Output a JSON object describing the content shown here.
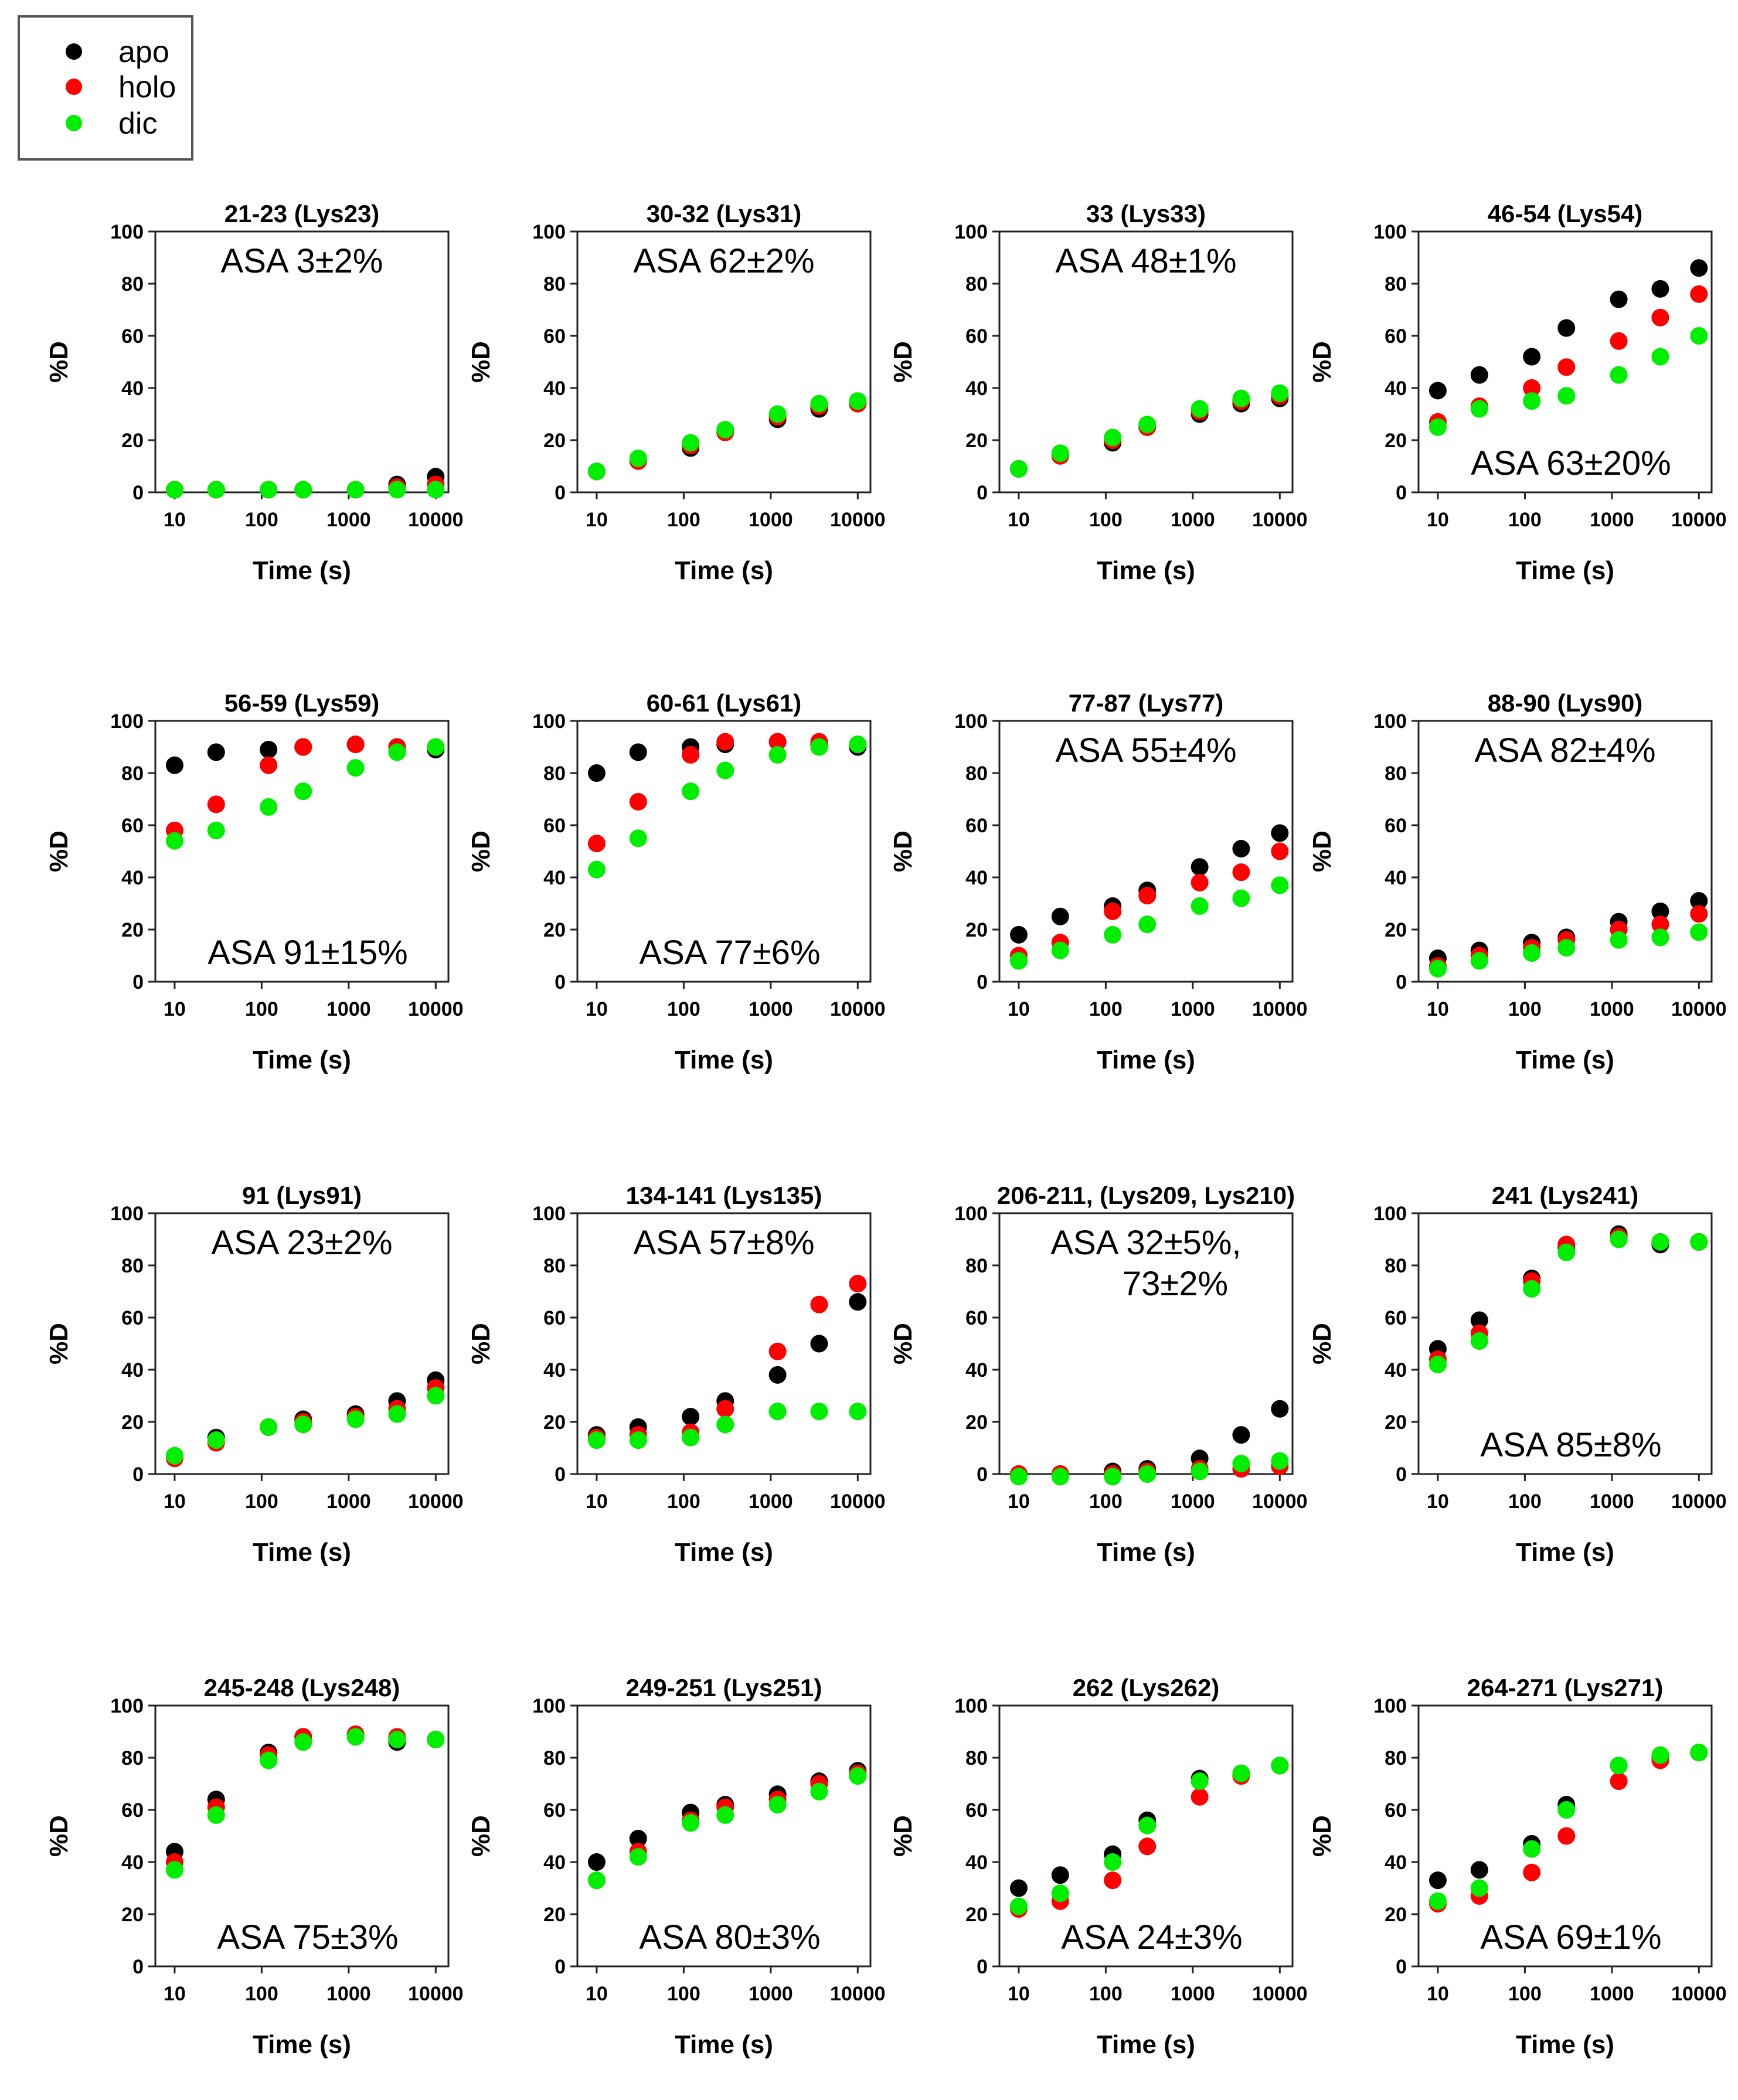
{
  "legend": [
    {
      "label": "apo",
      "color": "#000000"
    },
    {
      "label": "holo",
      "color": "#ff0000"
    },
    {
      "label": "dic",
      "color": "#00ee00"
    }
  ],
  "chart_data": [
    {
      "type": "scatter",
      "title": "21-23 (Lys23)",
      "xlabel": "Time (s)",
      "ylabel": "%D",
      "xscale": "log",
      "xticks": [
        10,
        100,
        1000,
        10000
      ],
      "yticks": [
        0,
        20,
        40,
        60,
        80,
        100
      ],
      "ylim": [
        0,
        100
      ],
      "annotation": [
        "ASA 3±2%"
      ],
      "annotation_position": "top",
      "x": [
        10,
        30,
        120,
        300,
        1200,
        3600,
        10000
      ],
      "series": [
        {
          "name": "apo",
          "values": [
            1,
            1,
            1,
            1,
            1,
            3,
            6
          ]
        },
        {
          "name": "holo",
          "values": [
            1,
            1,
            1,
            1,
            1,
            2,
            3
          ]
        },
        {
          "name": "dic",
          "values": [
            1,
            1,
            1,
            1,
            1,
            1,
            1
          ]
        }
      ]
    },
    {
      "type": "scatter",
      "title": "30-32 (Lys31)",
      "xlabel": "Time (s)",
      "ylabel": "%D",
      "xscale": "log",
      "xticks": [
        10,
        100,
        1000,
        10000
      ],
      "yticks": [
        0,
        20,
        40,
        60,
        80,
        100
      ],
      "ylim": [
        0,
        100
      ],
      "annotation": [
        "ASA 62±2%"
      ],
      "annotation_position": "top",
      "x": [
        10,
        30,
        120,
        300,
        1200,
        3600,
        10000
      ],
      "series": [
        {
          "name": "apo",
          "values": [
            8,
            12,
            17,
            23,
            28,
            32,
            34
          ]
        },
        {
          "name": "holo",
          "values": [
            8,
            12,
            18,
            23,
            29,
            33,
            34
          ]
        },
        {
          "name": "dic",
          "values": [
            8,
            13,
            19,
            24,
            30,
            34,
            35
          ]
        }
      ]
    },
    {
      "type": "scatter",
      "title": "33 (Lys33)",
      "xlabel": "Time (s)",
      "ylabel": "%D",
      "xscale": "log",
      "xticks": [
        10,
        100,
        1000,
        10000
      ],
      "yticks": [
        0,
        20,
        40,
        60,
        80,
        100
      ],
      "ylim": [
        0,
        100
      ],
      "annotation": [
        "ASA 48±1%"
      ],
      "annotation_position": "top",
      "x": [
        10,
        30,
        120,
        300,
        1200,
        3600,
        10000
      ],
      "series": [
        {
          "name": "apo",
          "values": [
            9,
            14,
            19,
            25,
            30,
            34,
            36
          ]
        },
        {
          "name": "holo",
          "values": [
            9,
            14,
            20,
            25,
            31,
            35,
            37
          ]
        },
        {
          "name": "dic",
          "values": [
            9,
            15,
            21,
            26,
            32,
            36,
            38
          ]
        }
      ]
    },
    {
      "type": "scatter",
      "title": "46-54 (Lys54)",
      "xlabel": "Time (s)",
      "ylabel": "%D",
      "xscale": "log",
      "xticks": [
        10,
        100,
        1000,
        10000
      ],
      "yticks": [
        0,
        20,
        40,
        60,
        80,
        100
      ],
      "ylim": [
        0,
        100
      ],
      "annotation": [
        "ASA 63±20%"
      ],
      "annotation_position": "bottom",
      "x": [
        10,
        30,
        120,
        300,
        1200,
        3600,
        10000
      ],
      "series": [
        {
          "name": "apo",
          "values": [
            39,
            45,
            52,
            63,
            74,
            78,
            86
          ]
        },
        {
          "name": "holo",
          "values": [
            27,
            33,
            40,
            48,
            58,
            67,
            76
          ]
        },
        {
          "name": "dic",
          "values": [
            25,
            32,
            35,
            37,
            45,
            52,
            60
          ]
        }
      ]
    },
    {
      "type": "scatter",
      "title": "56-59 (Lys59)",
      "xlabel": "Time (s)",
      "ylabel": "%D",
      "xscale": "log",
      "xticks": [
        10,
        100,
        1000,
        10000
      ],
      "yticks": [
        0,
        20,
        40,
        60,
        80,
        100
      ],
      "ylim": [
        0,
        100
      ],
      "annotation": [
        "ASA 91±15%"
      ],
      "annotation_position": "bottom",
      "x": [
        10,
        30,
        120,
        300,
        1200,
        3600,
        10000
      ],
      "series": [
        {
          "name": "apo",
          "values": [
            83,
            88,
            89,
            90,
            91,
            90,
            89
          ]
        },
        {
          "name": "holo",
          "values": [
            58,
            68,
            83,
            90,
            91,
            90,
            90
          ]
        },
        {
          "name": "dic",
          "values": [
            54,
            58,
            67,
            73,
            82,
            88,
            90
          ]
        }
      ]
    },
    {
      "type": "scatter",
      "title": "60-61 (Lys61)",
      "xlabel": "Time (s)",
      "ylabel": "%D",
      "xscale": "log",
      "xticks": [
        10,
        100,
        1000,
        10000
      ],
      "yticks": [
        0,
        20,
        40,
        60,
        80,
        100
      ],
      "ylim": [
        0,
        100
      ],
      "annotation": [
        "ASA 77±6%"
      ],
      "annotation_position": "bottom",
      "x": [
        10,
        30,
        120,
        300,
        1200,
        3600,
        10000
      ],
      "series": [
        {
          "name": "apo",
          "values": [
            80,
            88,
            90,
            91,
            92,
            91,
            90
          ]
        },
        {
          "name": "holo",
          "values": [
            53,
            69,
            87,
            92,
            92,
            92,
            91
          ]
        },
        {
          "name": "dic",
          "values": [
            43,
            55,
            73,
            81,
            87,
            90,
            91
          ]
        }
      ]
    },
    {
      "type": "scatter",
      "title": "77-87 (Lys77)",
      "xlabel": "Time (s)",
      "ylabel": "%D",
      "xscale": "log",
      "xticks": [
        10,
        100,
        1000,
        10000
      ],
      "yticks": [
        0,
        20,
        40,
        60,
        80,
        100
      ],
      "ylim": [
        0,
        100
      ],
      "annotation": [
        "ASA 55±4%"
      ],
      "annotation_position": "top",
      "x": [
        10,
        30,
        120,
        300,
        1200,
        3600,
        10000
      ],
      "series": [
        {
          "name": "apo",
          "values": [
            18,
            25,
            29,
            35,
            44,
            51,
            57
          ]
        },
        {
          "name": "holo",
          "values": [
            10,
            15,
            27,
            33,
            38,
            42,
            50
          ]
        },
        {
          "name": "dic",
          "values": [
            8,
            12,
            18,
            22,
            29,
            32,
            37
          ]
        }
      ]
    },
    {
      "type": "scatter",
      "title": "88-90 (Lys90)",
      "xlabel": "Time (s)",
      "ylabel": "%D",
      "xscale": "log",
      "xticks": [
        10,
        100,
        1000,
        10000
      ],
      "yticks": [
        0,
        20,
        40,
        60,
        80,
        100
      ],
      "ylim": [
        0,
        100
      ],
      "annotation": [
        "ASA 82±4%"
      ],
      "annotation_position": "top",
      "x": [
        10,
        30,
        120,
        300,
        1200,
        3600,
        10000
      ],
      "series": [
        {
          "name": "apo",
          "values": [
            9,
            12,
            15,
            17,
            23,
            27,
            31
          ]
        },
        {
          "name": "holo",
          "values": [
            6,
            10,
            13,
            16,
            20,
            22,
            26
          ]
        },
        {
          "name": "dic",
          "values": [
            5,
            8,
            11,
            13,
            16,
            17,
            19
          ]
        }
      ]
    },
    {
      "type": "scatter",
      "title": "91 (Lys91)",
      "xlabel": "Time (s)",
      "ylabel": "%D",
      "xscale": "log",
      "xticks": [
        10,
        100,
        1000,
        10000
      ],
      "yticks": [
        0,
        20,
        40,
        60,
        80,
        100
      ],
      "ylim": [
        0,
        100
      ],
      "annotation": [
        "ASA 23±2%"
      ],
      "annotation_position": "top",
      "x": [
        10,
        30,
        120,
        300,
        1200,
        3600,
        10000
      ],
      "series": [
        {
          "name": "apo",
          "values": [
            7,
            14,
            18,
            21,
            23,
            28,
            36
          ]
        },
        {
          "name": "holo",
          "values": [
            6,
            12,
            18,
            20,
            22,
            25,
            33
          ]
        },
        {
          "name": "dic",
          "values": [
            7,
            13,
            18,
            19,
            21,
            23,
            30
          ]
        }
      ]
    },
    {
      "type": "scatter",
      "title": "134-141 (Lys135)",
      "xlabel": "Time (s)",
      "ylabel": "%D",
      "xscale": "log",
      "xticks": [
        10,
        100,
        1000,
        10000
      ],
      "yticks": [
        0,
        20,
        40,
        60,
        80,
        100
      ],
      "ylim": [
        0,
        100
      ],
      "annotation": [
        "ASA 57±8%"
      ],
      "annotation_position": "top",
      "x": [
        10,
        30,
        120,
        300,
        1200,
        3600,
        10000
      ],
      "series": [
        {
          "name": "apo",
          "values": [
            15,
            18,
            22,
            28,
            38,
            50,
            66
          ]
        },
        {
          "name": "holo",
          "values": [
            14,
            15,
            16,
            25,
            47,
            65,
            73
          ]
        },
        {
          "name": "dic",
          "values": [
            13,
            13,
            14,
            19,
            24,
            24,
            24
          ]
        }
      ]
    },
    {
      "type": "scatter",
      "title": "206-211, (Lys209, Lys210)",
      "xlabel": "Time (s)",
      "ylabel": "%D",
      "xscale": "log",
      "xticks": [
        10,
        100,
        1000,
        10000
      ],
      "yticks": [
        0,
        20,
        40,
        60,
        80,
        100
      ],
      "ylim": [
        0,
        100
      ],
      "annotation": [
        "ASA 32±5%,",
        "73±2%"
      ],
      "annotation_position": "top",
      "x": [
        10,
        30,
        120,
        300,
        1200,
        3600,
        10000
      ],
      "series": [
        {
          "name": "apo",
          "values": [
            0,
            0,
            1,
            2,
            6,
            15,
            25
          ]
        },
        {
          "name": "holo",
          "values": [
            0,
            0,
            0,
            1,
            2,
            2,
            3
          ]
        },
        {
          "name": "dic",
          "values": [
            -1,
            -1,
            -1,
            0,
            1,
            4,
            5
          ]
        }
      ]
    },
    {
      "type": "scatter",
      "title": "241 (Lys241)",
      "xlabel": "Time (s)",
      "ylabel": "%D",
      "xscale": "log",
      "xticks": [
        10,
        100,
        1000,
        10000
      ],
      "yticks": [
        0,
        20,
        40,
        60,
        80,
        100
      ],
      "ylim": [
        0,
        100
      ],
      "annotation": [
        "ASA 85±8%"
      ],
      "annotation_position": "bottom",
      "x": [
        10,
        30,
        120,
        300,
        1200,
        3600,
        10000
      ],
      "series": [
        {
          "name": "apo",
          "values": [
            48,
            59,
            75,
            87,
            92,
            88,
            89
          ]
        },
        {
          "name": "holo",
          "values": [
            44,
            54,
            74,
            88,
            91,
            89,
            89
          ]
        },
        {
          "name": "dic",
          "values": [
            42,
            51,
            71,
            85,
            90,
            89,
            89
          ]
        }
      ]
    },
    {
      "type": "scatter",
      "title": "245-248 (Lys248)",
      "xlabel": "Time (s)",
      "ylabel": "%D",
      "xscale": "log",
      "xticks": [
        10,
        100,
        1000,
        10000
      ],
      "yticks": [
        0,
        20,
        40,
        60,
        80,
        100
      ],
      "ylim": [
        0,
        100
      ],
      "annotation": [
        "ASA 75±3%"
      ],
      "annotation_position": "bottom",
      "x": [
        10,
        30,
        120,
        300,
        1200,
        3600,
        10000
      ],
      "series": [
        {
          "name": "apo",
          "values": [
            44,
            64,
            82,
            88,
            89,
            86,
            87
          ]
        },
        {
          "name": "holo",
          "values": [
            40,
            61,
            81,
            88,
            89,
            88,
            87
          ]
        },
        {
          "name": "dic",
          "values": [
            37,
            58,
            79,
            86,
            88,
            87,
            87
          ]
        }
      ]
    },
    {
      "type": "scatter",
      "title": "249-251 (Lys251)",
      "xlabel": "Time (s)",
      "ylabel": "%D",
      "xscale": "log",
      "xticks": [
        10,
        100,
        1000,
        10000
      ],
      "yticks": [
        0,
        20,
        40,
        60,
        80,
        100
      ],
      "ylim": [
        0,
        100
      ],
      "annotation": [
        "ASA 80±3%"
      ],
      "annotation_position": "bottom",
      "x": [
        10,
        30,
        120,
        300,
        1200,
        3600,
        10000
      ],
      "series": [
        {
          "name": "apo",
          "values": [
            40,
            49,
            59,
            62,
            66,
            71,
            75
          ]
        },
        {
          "name": "holo",
          "values": [
            33,
            44,
            56,
            61,
            64,
            70,
            74
          ]
        },
        {
          "name": "dic",
          "values": [
            33,
            42,
            55,
            58,
            62,
            67,
            73
          ]
        }
      ]
    },
    {
      "type": "scatter",
      "title": "262 (Lys262)",
      "xlabel": "Time (s)",
      "ylabel": "%D",
      "xscale": "log",
      "xticks": [
        10,
        100,
        1000,
        10000
      ],
      "yticks": [
        0,
        20,
        40,
        60,
        80,
        100
      ],
      "ylim": [
        0,
        100
      ],
      "annotation": [
        "ASA 24±3%"
      ],
      "annotation_position": "bottom",
      "x": [
        10,
        30,
        120,
        300,
        1200,
        3600,
        10000
      ],
      "series": [
        {
          "name": "apo",
          "values": [
            30,
            35,
            43,
            56,
            72,
            74,
            77
          ]
        },
        {
          "name": "holo",
          "values": [
            22,
            25,
            33,
            46,
            65,
            73,
            77
          ]
        },
        {
          "name": "dic",
          "values": [
            23,
            28,
            40,
            54,
            71,
            74,
            77
          ]
        }
      ]
    },
    {
      "type": "scatter",
      "title": "264-271 (Lys271)",
      "xlabel": "Time (s)",
      "ylabel": "%D",
      "xscale": "log",
      "xticks": [
        10,
        100,
        1000,
        10000
      ],
      "yticks": [
        0,
        20,
        40,
        60,
        80,
        100
      ],
      "ylim": [
        0,
        100
      ],
      "annotation": [
        "ASA 69±1%"
      ],
      "annotation_position": "bottom",
      "x": [
        10,
        30,
        120,
        300,
        1200,
        3600,
        10000
      ],
      "series": [
        {
          "name": "apo",
          "values": [
            33,
            37,
            47,
            62,
            77,
            80,
            82
          ]
        },
        {
          "name": "holo",
          "values": [
            24,
            27,
            36,
            50,
            71,
            79,
            82
          ]
        },
        {
          "name": "dic",
          "values": [
            25,
            30,
            45,
            60,
            77,
            81,
            82
          ]
        }
      ]
    }
  ]
}
